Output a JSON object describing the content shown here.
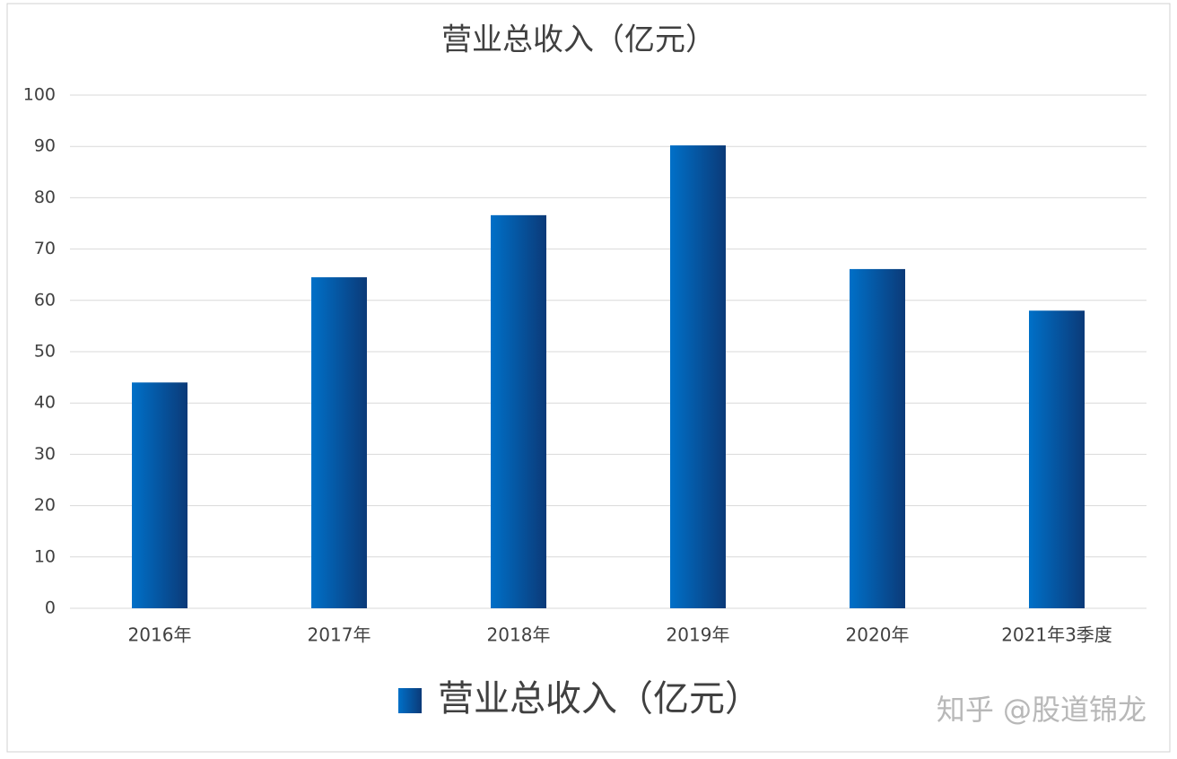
{
  "chart_data": {
    "type": "bar",
    "title": "营业总收入（亿元）",
    "categories": [
      "2016年",
      "2017年",
      "2018年",
      "2019年",
      "2020年",
      "2021年3季度"
    ],
    "series": [
      {
        "name": "营业总收入（亿元）",
        "color": "#0070c8",
        "values": [
          44,
          64.5,
          76.6,
          90.2,
          66.1,
          58
        ]
      }
    ],
    "ylim": [
      0,
      100
    ],
    "yticks": [
      0,
      10,
      20,
      30,
      40,
      50,
      60,
      70,
      80,
      90,
      100
    ],
    "grid": true,
    "legend": "bottom",
    "watermark": "知乎 @股道锦龙"
  }
}
